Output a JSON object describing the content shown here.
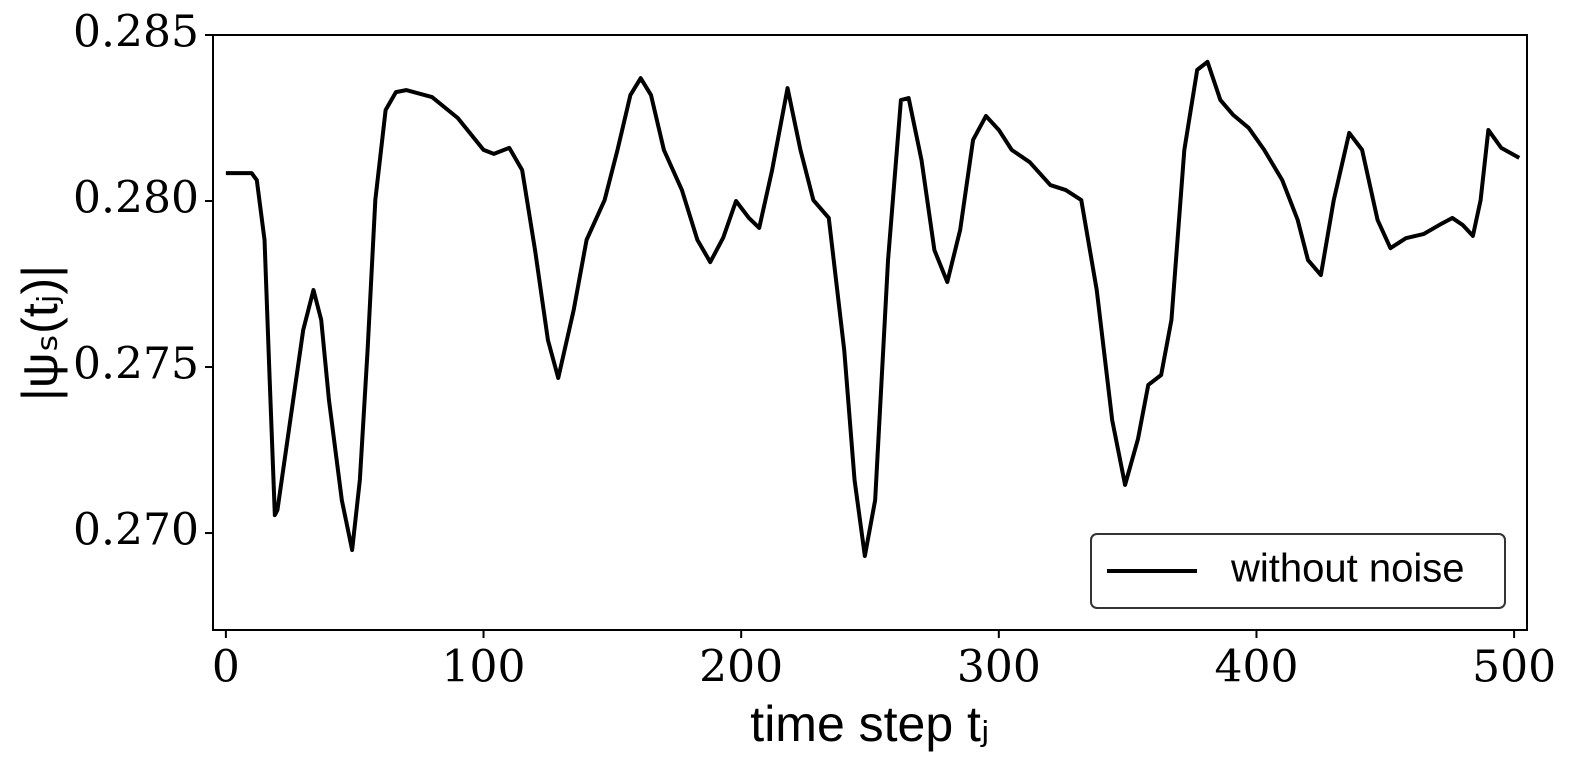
{
  "chart_data": {
    "type": "line",
    "xlabel": "time step tⱼ",
    "ylabel": "|ψₛ(tⱼ)|",
    "x": [
      0,
      10,
      12,
      15,
      17,
      19,
      20,
      25,
      30,
      34,
      37,
      40,
      45,
      49,
      52,
      55,
      58,
      62,
      66,
      70,
      80,
      90,
      100,
      104,
      110,
      115,
      120,
      125,
      129,
      135,
      140,
      147,
      152,
      157,
      161,
      165,
      170,
      177,
      183,
      188,
      193,
      198,
      203,
      207,
      212,
      218,
      223,
      228,
      234,
      240,
      244,
      248,
      252,
      257,
      262,
      265,
      270,
      275,
      280,
      285,
      290,
      295,
      300,
      305,
      312,
      320,
      326,
      332,
      338,
      344,
      349,
      354,
      358,
      363,
      367,
      372,
      377,
      381,
      386,
      391,
      397,
      403,
      410,
      416,
      420,
      425,
      430,
      436,
      441,
      447,
      452,
      458,
      465,
      471,
      476,
      480,
      484,
      487,
      490,
      495,
      502
    ],
    "series": [
      {
        "name": "without noise",
        "color": "#000000",
        "values": [
          0.28084,
          0.28084,
          0.28063,
          0.27883,
          0.27461,
          0.27054,
          0.27069,
          0.2734,
          0.27611,
          0.27732,
          0.27642,
          0.27401,
          0.27099,
          0.26949,
          0.2716,
          0.27551,
          0.28003,
          0.28274,
          0.28328,
          0.28334,
          0.28313,
          0.2825,
          0.28154,
          0.28142,
          0.2816,
          0.28093,
          0.27852,
          0.27581,
          0.27467,
          0.27672,
          0.27883,
          0.28003,
          0.28154,
          0.28319,
          0.2837,
          0.28319,
          0.28154,
          0.28033,
          0.27883,
          0.27816,
          0.27889,
          0.28,
          0.27949,
          0.27919,
          0.28093,
          0.2834,
          0.28154,
          0.28003,
          0.27949,
          0.27551,
          0.2716,
          0.26931,
          0.27099,
          0.27822,
          0.28304,
          0.2831,
          0.28123,
          0.27852,
          0.27756,
          0.27913,
          0.28184,
          0.28256,
          0.28214,
          0.28154,
          0.28117,
          0.28048,
          0.28033,
          0.28003,
          0.27732,
          0.2734,
          0.27145,
          0.27283,
          0.27446,
          0.27476,
          0.27642,
          0.28154,
          0.28395,
          0.28419,
          0.28304,
          0.28259,
          0.2822,
          0.28154,
          0.28063,
          0.27943,
          0.27822,
          0.27777,
          0.28003,
          0.28205,
          0.28154,
          0.27943,
          0.27858,
          0.27888,
          0.27901,
          0.27928,
          0.27949,
          0.27928,
          0.27895,
          0.28003,
          0.28214,
          0.2816,
          0.2813
        ]
      }
    ],
    "xlim": [
      -5,
      505
    ],
    "ylim": [
      0.26708,
      0.285
    ],
    "xticks": [
      0,
      100,
      200,
      300,
      400,
      500
    ],
    "yticks": [
      {
        "value": 0.27,
        "label": "0.270"
      },
      0.275,
      {
        "value": 0.28,
        "label": "0.280"
      },
      0.285
    ],
    "legend": "lower right",
    "grid": false
  }
}
